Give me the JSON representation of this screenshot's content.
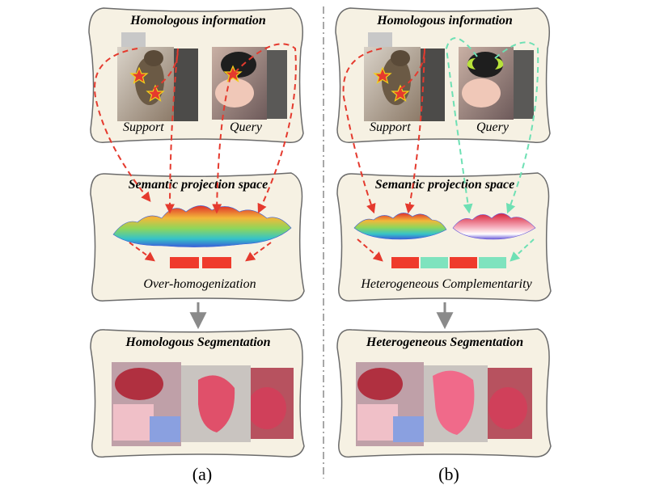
{
  "panel_a": {
    "top_title": "Homologous information",
    "support_label": "Support",
    "query_label": "Query",
    "middle_title": "Semantic projection space",
    "middle_caption": "Over-homogenization",
    "bottom_title": "Homologous Segmentation",
    "caption": "(a)"
  },
  "panel_b": {
    "top_title": "Homologous information",
    "support_label": "Support",
    "query_label": "Query",
    "middle_title": "Semantic projection space",
    "middle_caption": "Heterogeneous Complementarity",
    "bottom_title": "Heterogeneous Segmentation",
    "caption": "(b)"
  },
  "colors": {
    "box_fill": "#f6f1e3",
    "box_stroke": "#6b6b6b",
    "red_arrow": "#e53a2e",
    "green_arrow": "#6ee0b4",
    "gray_arrow": "#8a8a8a",
    "red_block": "#ef3b2c",
    "green_block": "#7fe3be"
  }
}
